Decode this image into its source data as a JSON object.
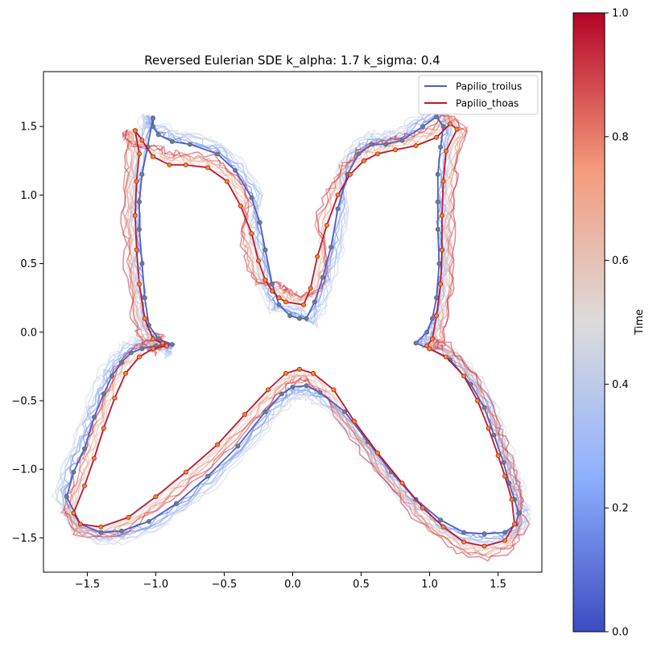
{
  "chart_data": {
    "type": "line",
    "title": "Reversed Eulerian SDE k_alpha: 1.7 k_sigma: 0.4",
    "xlim": [
      -1.82,
      1.82
    ],
    "ylim": [
      -1.75,
      1.9
    ],
    "xticks": [
      -1.5,
      -1.0,
      -0.5,
      0.0,
      0.5,
      1.0,
      1.5
    ],
    "xtick_labels": [
      "−1.5",
      "−1.0",
      "−0.5",
      "0.0",
      "0.5",
      "1.0",
      "1.5"
    ],
    "yticks": [
      -1.5,
      -1.0,
      -0.5,
      0.0,
      0.5,
      1.0,
      1.5
    ],
    "ytick_labels": [
      "−1.5",
      "−1.0",
      "−0.5",
      "0.0",
      "0.5",
      "1.0",
      "1.5"
    ],
    "grid": false,
    "legend_position": "top-right",
    "series": [
      {
        "name": "Papilio_troilus",
        "color": "#4a5fcc",
        "marker_color": "#708070",
        "x": [
          -1.02,
          -1.02,
          -0.98,
          -0.88,
          -0.75,
          -0.55,
          -0.42,
          -0.3,
          -0.24,
          -0.2,
          -0.15,
          -0.1,
          -0.02,
          0.05,
          0.1,
          0.16,
          0.22,
          0.28,
          0.33,
          0.4,
          0.48,
          0.58,
          0.68,
          0.8,
          0.95,
          1.05,
          1.1,
          1.08,
          1.06,
          1.06,
          1.06,
          1.07,
          1.05,
          1.02,
          0.98,
          0.9,
          1.0,
          1.15,
          1.3,
          1.4,
          1.47,
          1.54,
          1.58,
          1.62,
          1.65,
          1.63,
          1.55,
          1.4,
          1.25,
          1.08,
          0.9,
          0.72,
          0.55,
          0.38,
          0.2,
          0.1,
          0.0,
          -0.08,
          -0.2,
          -0.4,
          -0.62,
          -0.85,
          -1.05,
          -1.25,
          -1.4,
          -1.55,
          -1.65,
          -1.6,
          -1.52,
          -1.45,
          -1.38,
          -1.32,
          -1.25,
          -1.18,
          -1.1,
          -1.0,
          -0.92,
          -0.88,
          -0.98,
          -1.05,
          -1.08,
          -1.1,
          -1.12,
          -1.12,
          -1.1,
          -1.06,
          -1.02
        ],
        "y": [
          1.56,
          1.5,
          1.44,
          1.39,
          1.37,
          1.3,
          1.18,
          0.98,
          0.8,
          0.6,
          0.35,
          0.2,
          0.12,
          0.1,
          0.1,
          0.22,
          0.4,
          0.62,
          0.9,
          1.15,
          1.3,
          1.37,
          1.37,
          1.4,
          1.5,
          1.57,
          1.5,
          1.35,
          1.15,
          0.95,
          0.75,
          0.5,
          0.25,
          0.1,
          0.0,
          -0.08,
          -0.12,
          -0.2,
          -0.38,
          -0.55,
          -0.75,
          -0.95,
          -1.1,
          -1.22,
          -1.32,
          -1.4,
          -1.46,
          -1.47,
          -1.46,
          -1.37,
          -1.22,
          -1.02,
          -0.8,
          -0.58,
          -0.44,
          -0.39,
          -0.4,
          -0.45,
          -0.58,
          -0.83,
          -1.05,
          -1.25,
          -1.38,
          -1.45,
          -1.46,
          -1.4,
          -1.2,
          -1.02,
          -0.85,
          -0.62,
          -0.45,
          -0.32,
          -0.22,
          -0.15,
          -0.12,
          -0.1,
          -0.09,
          -0.09,
          -0.05,
          0.05,
          0.25,
          0.5,
          0.75,
          0.95,
          1.15,
          1.35,
          1.56
        ]
      },
      {
        "name": "Papilio_thoas",
        "color": "#c0182e",
        "marker_color": "#e89020",
        "x": [
          -1.15,
          -1.1,
          -1.02,
          -0.9,
          -0.78,
          -0.62,
          -0.48,
          -0.38,
          -0.3,
          -0.25,
          -0.2,
          -0.15,
          -0.1,
          -0.05,
          0.08,
          0.13,
          0.18,
          0.25,
          0.33,
          0.42,
          0.52,
          0.62,
          0.75,
          0.9,
          1.05,
          1.15,
          1.2,
          1.12,
          1.1,
          1.09,
          1.09,
          1.08,
          1.05,
          1.02,
          0.98,
          1.0,
          1.12,
          1.25,
          1.35,
          1.43,
          1.5,
          1.55,
          1.6,
          1.62,
          1.55,
          1.4,
          1.25,
          1.1,
          0.95,
          0.8,
          0.62,
          0.45,
          0.3,
          0.15,
          0.05,
          -0.05,
          -0.18,
          -0.35,
          -0.55,
          -0.78,
          -1.0,
          -1.2,
          -1.4,
          -1.55,
          -1.6,
          -1.52,
          -1.45,
          -1.38,
          -1.3,
          -1.22,
          -1.12,
          -1.02,
          -0.92,
          -0.95,
          -1.02,
          -1.08,
          -1.12,
          -1.14,
          -1.15,
          -1.14,
          -1.12,
          -1.15
        ],
        "y": [
          1.47,
          1.4,
          1.28,
          1.22,
          1.22,
          1.2,
          1.1,
          0.92,
          0.72,
          0.52,
          0.38,
          0.3,
          0.25,
          0.22,
          0.2,
          0.32,
          0.55,
          0.78,
          1.0,
          1.15,
          1.25,
          1.3,
          1.33,
          1.36,
          1.42,
          1.52,
          1.48,
          1.32,
          1.1,
          0.85,
          0.6,
          0.35,
          0.12,
          -0.05,
          -0.1,
          -0.12,
          -0.18,
          -0.32,
          -0.5,
          -0.7,
          -0.9,
          -1.05,
          -1.22,
          -1.4,
          -1.52,
          -1.56,
          -1.53,
          -1.42,
          -1.28,
          -1.1,
          -0.88,
          -0.65,
          -0.42,
          -0.3,
          -0.27,
          -0.3,
          -0.42,
          -0.6,
          -0.82,
          -1.02,
          -1.2,
          -1.35,
          -1.42,
          -1.4,
          -1.32,
          -1.12,
          -0.92,
          -0.7,
          -0.48,
          -0.3,
          -0.18,
          -0.12,
          -0.1,
          -0.08,
          -0.05,
          0.1,
          0.35,
          0.6,
          0.85,
          1.1,
          1.3,
          1.47
        ]
      }
    ],
    "colorbar": {
      "label": "Time",
      "vmin": 0.0,
      "vmax": 1.0,
      "ticks": [
        0.0,
        0.2,
        0.4,
        0.6,
        0.8,
        1.0
      ],
      "tick_labels": [
        "0.0",
        "0.2",
        "0.4",
        "0.6",
        "0.8",
        "1.0"
      ],
      "colormap": "coolwarm"
    }
  }
}
